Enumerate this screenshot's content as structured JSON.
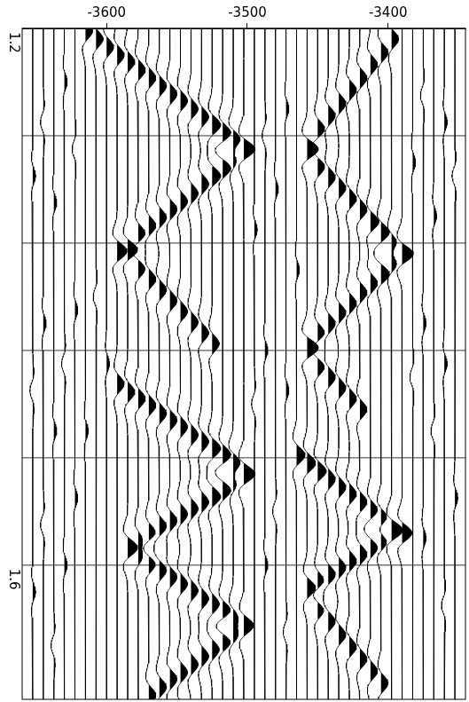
{
  "chart_data": {
    "type": "wiggle",
    "color": "#000000",
    "grid": true,
    "xlim": [
      -3660,
      -3345
    ],
    "xticks": [
      -3600,
      -3500,
      -3400
    ],
    "ylim": [
      1.2,
      1.7
    ],
    "yticks": [
      1.2,
      1.6
    ],
    "grid_lines": [
      1.28,
      1.36,
      1.44,
      1.52
    ],
    "traces": [
      {
        "x": -3652.5,
        "events": [
          [
            1.31,
            2
          ],
          [
            1.47,
            -2
          ],
          [
            1.62,
            2
          ]
        ]
      },
      {
        "x": -3645,
        "events": [
          [
            1.27,
            -2
          ],
          [
            1.42,
            2
          ],
          [
            1.57,
            -2
          ]
        ]
      },
      {
        "x": -3637.5,
        "events": [
          [
            1.33,
            2
          ],
          [
            1.5,
            2
          ],
          [
            1.66,
            -2
          ]
        ]
      },
      {
        "x": -3630,
        "events": [
          [
            1.24,
            2
          ],
          [
            1.45,
            -2
          ],
          [
            1.6,
            2
          ]
        ]
      },
      {
        "x": -3622.5,
        "events": [
          [
            1.29,
            -2
          ],
          [
            1.41,
            2
          ],
          [
            1.55,
            2
          ]
        ]
      },
      {
        "x": -3615,
        "events": [
          [
            1.202,
            5
          ],
          [
            1.5,
            2
          ]
        ]
      },
      {
        "x": -3607.5,
        "events": [
          [
            1.208,
            5
          ],
          [
            1.4,
            -2
          ]
        ]
      },
      {
        "x": -3600,
        "events": [
          [
            1.214,
            5
          ],
          [
            1.45,
            2
          ]
        ]
      },
      {
        "x": -3592.5,
        "events": [
          [
            1.22,
            5
          ],
          [
            1.366,
            7
          ],
          [
            1.465,
            5
          ]
        ]
      },
      {
        "x": -3585,
        "events": [
          [
            1.225,
            5
          ],
          [
            1.365,
            7
          ],
          [
            1.471,
            5
          ],
          [
            1.587,
            7
          ]
        ]
      },
      {
        "x": -3577.5,
        "events": [
          [
            1.231,
            5
          ],
          [
            1.353,
            5
          ],
          [
            1.379,
            5
          ],
          [
            1.476,
            5
          ],
          [
            1.581,
            5
          ],
          [
            1.594,
            5
          ]
        ]
      },
      {
        "x": -3570,
        "events": [
          [
            1.237,
            5
          ],
          [
            1.347,
            5
          ],
          [
            1.387,
            5
          ],
          [
            1.481,
            5
          ],
          [
            1.576,
            5
          ],
          [
            1.599,
            5
          ],
          [
            1.697,
            5
          ]
        ]
      },
      {
        "x": -3562.5,
        "events": [
          [
            1.243,
            5
          ],
          [
            1.341,
            5
          ],
          [
            1.395,
            5
          ],
          [
            1.487,
            5
          ],
          [
            1.571,
            5
          ],
          [
            1.604,
            5
          ],
          [
            1.691,
            5
          ]
        ]
      },
      {
        "x": -3555,
        "events": [
          [
            1.249,
            5
          ],
          [
            1.335,
            5
          ],
          [
            1.403,
            5
          ],
          [
            1.492,
            5
          ],
          [
            1.567,
            5
          ],
          [
            1.609,
            5
          ],
          [
            1.685,
            5
          ]
        ]
      },
      {
        "x": -3547.5,
        "events": [
          [
            1.254,
            5
          ],
          [
            1.329,
            5
          ],
          [
            1.411,
            5
          ],
          [
            1.497,
            5
          ],
          [
            1.562,
            5
          ],
          [
            1.614,
            5
          ],
          [
            1.68,
            5
          ]
        ]
      },
      {
        "x": -3540,
        "events": [
          [
            1.26,
            5
          ],
          [
            1.323,
            5
          ],
          [
            1.419,
            5
          ],
          [
            1.503,
            5
          ],
          [
            1.558,
            5
          ],
          [
            1.619,
            5
          ],
          [
            1.674,
            5
          ]
        ]
      },
      {
        "x": -3532.5,
        "events": [
          [
            1.266,
            5
          ],
          [
            1.316,
            5
          ],
          [
            1.427,
            5
          ],
          [
            1.508,
            5
          ],
          [
            1.553,
            5
          ],
          [
            1.625,
            5
          ],
          [
            1.668,
            5
          ]
        ]
      },
      {
        "x": -3525,
        "events": [
          [
            1.272,
            6
          ],
          [
            1.31,
            6
          ],
          [
            1.435,
            5
          ],
          [
            1.513,
            6
          ],
          [
            1.549,
            6
          ],
          [
            1.629,
            5
          ],
          [
            1.663,
            5
          ]
        ]
      },
      {
        "x": -3517.5,
        "events": [
          [
            1.278,
            6
          ],
          [
            1.304,
            6
          ],
          [
            1.518,
            6
          ],
          [
            1.544,
            6
          ],
          [
            1.634,
            6
          ],
          [
            1.657,
            6
          ]
        ]
      },
      {
        "x": -3510,
        "events": [
          [
            1.283,
            7
          ],
          [
            1.298,
            5
          ],
          [
            1.524,
            7
          ],
          [
            1.539,
            5
          ],
          [
            1.639,
            6
          ],
          [
            1.652,
            6
          ]
        ]
      },
      {
        "x": -3502.5,
        "events": [
          [
            1.29,
            8
          ],
          [
            1.532,
            8
          ],
          [
            1.645,
            7
          ]
        ]
      },
      {
        "x": -3495,
        "events": [
          [
            1.35,
            2
          ],
          [
            1.48,
            -2
          ]
        ]
      },
      {
        "x": -3487.5,
        "events": [
          [
            1.28,
            -2
          ],
          [
            1.44,
            2
          ],
          [
            1.6,
            2
          ]
        ]
      },
      {
        "x": -3480,
        "events": [
          [
            1.32,
            2
          ],
          [
            1.56,
            -2
          ]
        ]
      },
      {
        "x": -3472.5,
        "events": [
          [
            1.26,
            2
          ],
          [
            1.47,
            2
          ],
          [
            1.65,
            -2
          ]
        ]
      },
      {
        "x": -3465,
        "events": [
          [
            1.38,
            2
          ],
          [
            1.518,
            6
          ]
        ]
      },
      {
        "x": -3457.5,
        "events": [
          [
            1.29,
            8
          ],
          [
            1.438,
            8
          ],
          [
            1.524,
            6
          ],
          [
            1.617,
            6
          ]
        ]
      },
      {
        "x": -3450,
        "events": [
          [
            1.275,
            5
          ],
          [
            1.303,
            5
          ],
          [
            1.427,
            5
          ],
          [
            1.452,
            5
          ],
          [
            1.53,
            6
          ],
          [
            1.612,
            5
          ],
          [
            1.633,
            5
          ]
        ]
      },
      {
        "x": -3442.5,
        "events": [
          [
            1.265,
            5
          ],
          [
            1.311,
            5
          ],
          [
            1.42,
            5
          ],
          [
            1.46,
            5
          ],
          [
            1.536,
            5
          ],
          [
            1.607,
            5
          ],
          [
            1.642,
            5
          ]
        ]
      },
      {
        "x": -3435,
        "events": [
          [
            1.256,
            5
          ],
          [
            1.319,
            5
          ],
          [
            1.412,
            5
          ],
          [
            1.468,
            5
          ],
          [
            1.542,
            5
          ],
          [
            1.602,
            5
          ],
          [
            1.652,
            5
          ]
        ]
      },
      {
        "x": -3427.5,
        "events": [
          [
            1.246,
            5
          ],
          [
            1.327,
            5
          ],
          [
            1.405,
            5
          ],
          [
            1.476,
            5
          ],
          [
            1.547,
            5
          ],
          [
            1.597,
            5
          ],
          [
            1.661,
            5
          ]
        ]
      },
      {
        "x": -3420,
        "events": [
          [
            1.237,
            5
          ],
          [
            1.335,
            5
          ],
          [
            1.397,
            5
          ],
          [
            1.484,
            5
          ],
          [
            1.553,
            5
          ],
          [
            1.592,
            5
          ],
          [
            1.67,
            5
          ]
        ]
      },
      {
        "x": -3412.5,
        "events": [
          [
            1.227,
            5
          ],
          [
            1.344,
            6
          ],
          [
            1.39,
            5
          ],
          [
            1.559,
            5
          ],
          [
            1.587,
            5
          ],
          [
            1.679,
            5
          ]
        ]
      },
      {
        "x": -3405,
        "events": [
          [
            1.218,
            5
          ],
          [
            1.352,
            6
          ],
          [
            1.383,
            6
          ],
          [
            1.565,
            6
          ],
          [
            1.582,
            6
          ],
          [
            1.688,
            5
          ]
        ]
      },
      {
        "x": -3397.5,
        "events": [
          [
            1.208,
            5
          ],
          [
            1.36,
            6
          ],
          [
            1.375,
            6
          ],
          [
            1.574,
            8
          ]
        ]
      },
      {
        "x": -3390,
        "events": [
          [
            1.368,
            8
          ],
          [
            1.576,
            7
          ]
        ]
      },
      {
        "x": -3382.5,
        "events": [
          [
            1.3,
            2
          ],
          [
            1.46,
            -2
          ]
        ]
      },
      {
        "x": -3375,
        "events": [
          [
            1.25,
            -2
          ],
          [
            1.42,
            2
          ],
          [
            1.58,
            2
          ]
        ]
      },
      {
        "x": -3367.5,
        "events": [
          [
            1.34,
            2
          ],
          [
            1.5,
            -2
          ]
        ]
      },
      {
        "x": -3360,
        "events": [
          [
            1.27,
            2
          ],
          [
            1.45,
            2
          ],
          [
            1.63,
            -2
          ]
        ]
      },
      {
        "x": -3352.5,
        "events": [
          [
            1.31,
            -2
          ],
          [
            1.55,
            2
          ]
        ]
      }
    ]
  }
}
